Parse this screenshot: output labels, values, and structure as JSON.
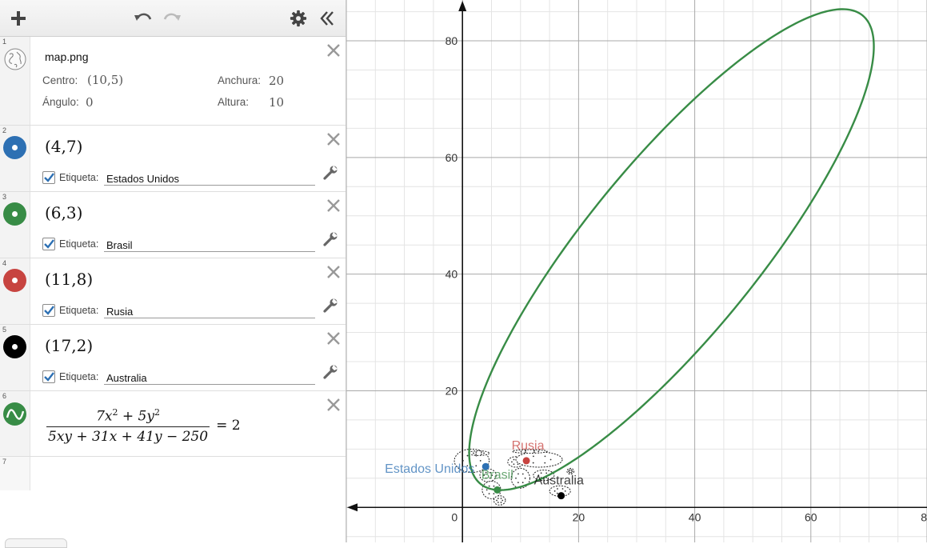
{
  "toolbar": {
    "add_icon": "plus-icon",
    "undo_icon": "undo-icon",
    "redo_icon": "redo-icon",
    "settings_icon": "gear-icon",
    "collapse_icon": "double-chevron-left-icon"
  },
  "expressions": {
    "image": {
      "index": "1",
      "title": "map.png",
      "center_label": "Centro:",
      "center_value": "(10,5)",
      "width_label": "Anchura:",
      "width_value": "20",
      "angle_label": "Ángulo:",
      "angle_value": "0",
      "height_label": "Altura:",
      "height_value": "10"
    },
    "points": [
      {
        "index": "2",
        "coords": "(4,7)",
        "label_caption": "Etiqueta:",
        "label_value": "Estados Unidos",
        "color": "#2d70b3",
        "x": 4,
        "y": 7
      },
      {
        "index": "3",
        "coords": "(6,3)",
        "label_caption": "Etiqueta:",
        "label_value": "Brasil",
        "color": "#388c46",
        "x": 6,
        "y": 3
      },
      {
        "index": "4",
        "coords": "(11,8)",
        "label_caption": "Etiqueta:",
        "label_value": "Rusia",
        "color": "#c74440",
        "x": 11,
        "y": 8
      },
      {
        "index": "5",
        "coords": "(17,2)",
        "label_caption": "Etiqueta:",
        "label_value": "Australia",
        "color": "#000000",
        "x": 17,
        "y": 2
      }
    ],
    "equation": {
      "index": "6",
      "numerator": "7x² + 5y²",
      "denominator": "5xy + 31x + 41y − 250",
      "rhs": "= 2",
      "color": "#388c46"
    },
    "empty": {
      "index": "7"
    }
  },
  "graph": {
    "xlim": [
      -20,
      80
    ],
    "ylim": [
      -6,
      87
    ],
    "x_ticks": [
      "20",
      "40",
      "60",
      "80"
    ],
    "y_ticks": [
      "20",
      "40",
      "60",
      "80"
    ],
    "origin_label": "0",
    "grid": true,
    "curve_color": "#388c46",
    "curve_equation": "7x^2+5y^2 = 2(5xy+31x+41y-250)"
  }
}
